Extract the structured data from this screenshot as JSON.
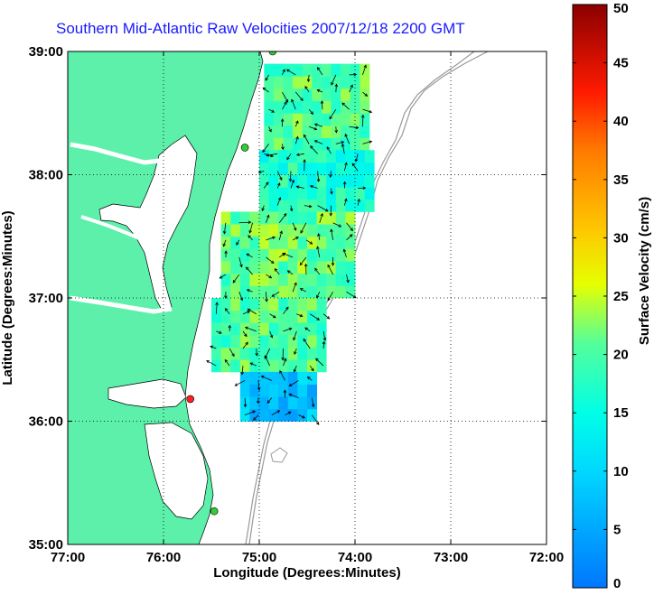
{
  "chart_data": {
    "type": "heatmap",
    "title": "Southern Mid-Atlantic Raw Velocities 2007/12/18 2200 GMT",
    "xlabel": "Longitude (Degrees:Minutes)",
    "ylabel": "Latitude (Degrees:Minutes)",
    "xlim": [
      -77,
      -72
    ],
    "ylim": [
      35,
      39
    ],
    "x_ticks": [
      "77:00",
      "76:00",
      "75:00",
      "74:00",
      "73:00",
      "72:00"
    ],
    "y_ticks": [
      "35:00",
      "36:00",
      "37:00",
      "38:00",
      "39:00"
    ],
    "grid": true,
    "colorbar": {
      "label": "Surface Velocity (cm/s)",
      "min": 0,
      "max": 50,
      "ticks": [
        "0",
        "5",
        "10",
        "15",
        "20",
        "25",
        "30",
        "35",
        "40",
        "45",
        "50"
      ]
    },
    "stations": [
      {
        "lon": -74.86,
        "lat": 39.0,
        "color": "#33cc33"
      },
      {
        "lon": -75.15,
        "lat": 38.22,
        "color": "#33cc33"
      },
      {
        "lon": -75.72,
        "lat": 36.18,
        "color": "#ff2020"
      },
      {
        "lon": -75.47,
        "lat": 35.27,
        "color": "#33cc33"
      }
    ],
    "velocity_regions": [
      {
        "lon": [
          -74.95,
          -73.85
        ],
        "lat": [
          38.2,
          38.9
        ],
        "speed": 20
      },
      {
        "lon": [
          -75.0,
          -73.85
        ],
        "lat": [
          37.7,
          38.2
        ],
        "speed": 17
      },
      {
        "lon": [
          -75.4,
          -74.0
        ],
        "lat": [
          37.0,
          37.7
        ],
        "speed": 21
      },
      {
        "lon": [
          -75.5,
          -74.3
        ],
        "lat": [
          36.4,
          37.0
        ],
        "speed": 20
      },
      {
        "lon": [
          -75.2,
          -74.4
        ],
        "lat": [
          36.0,
          36.4
        ],
        "speed": 8
      }
    ]
  }
}
